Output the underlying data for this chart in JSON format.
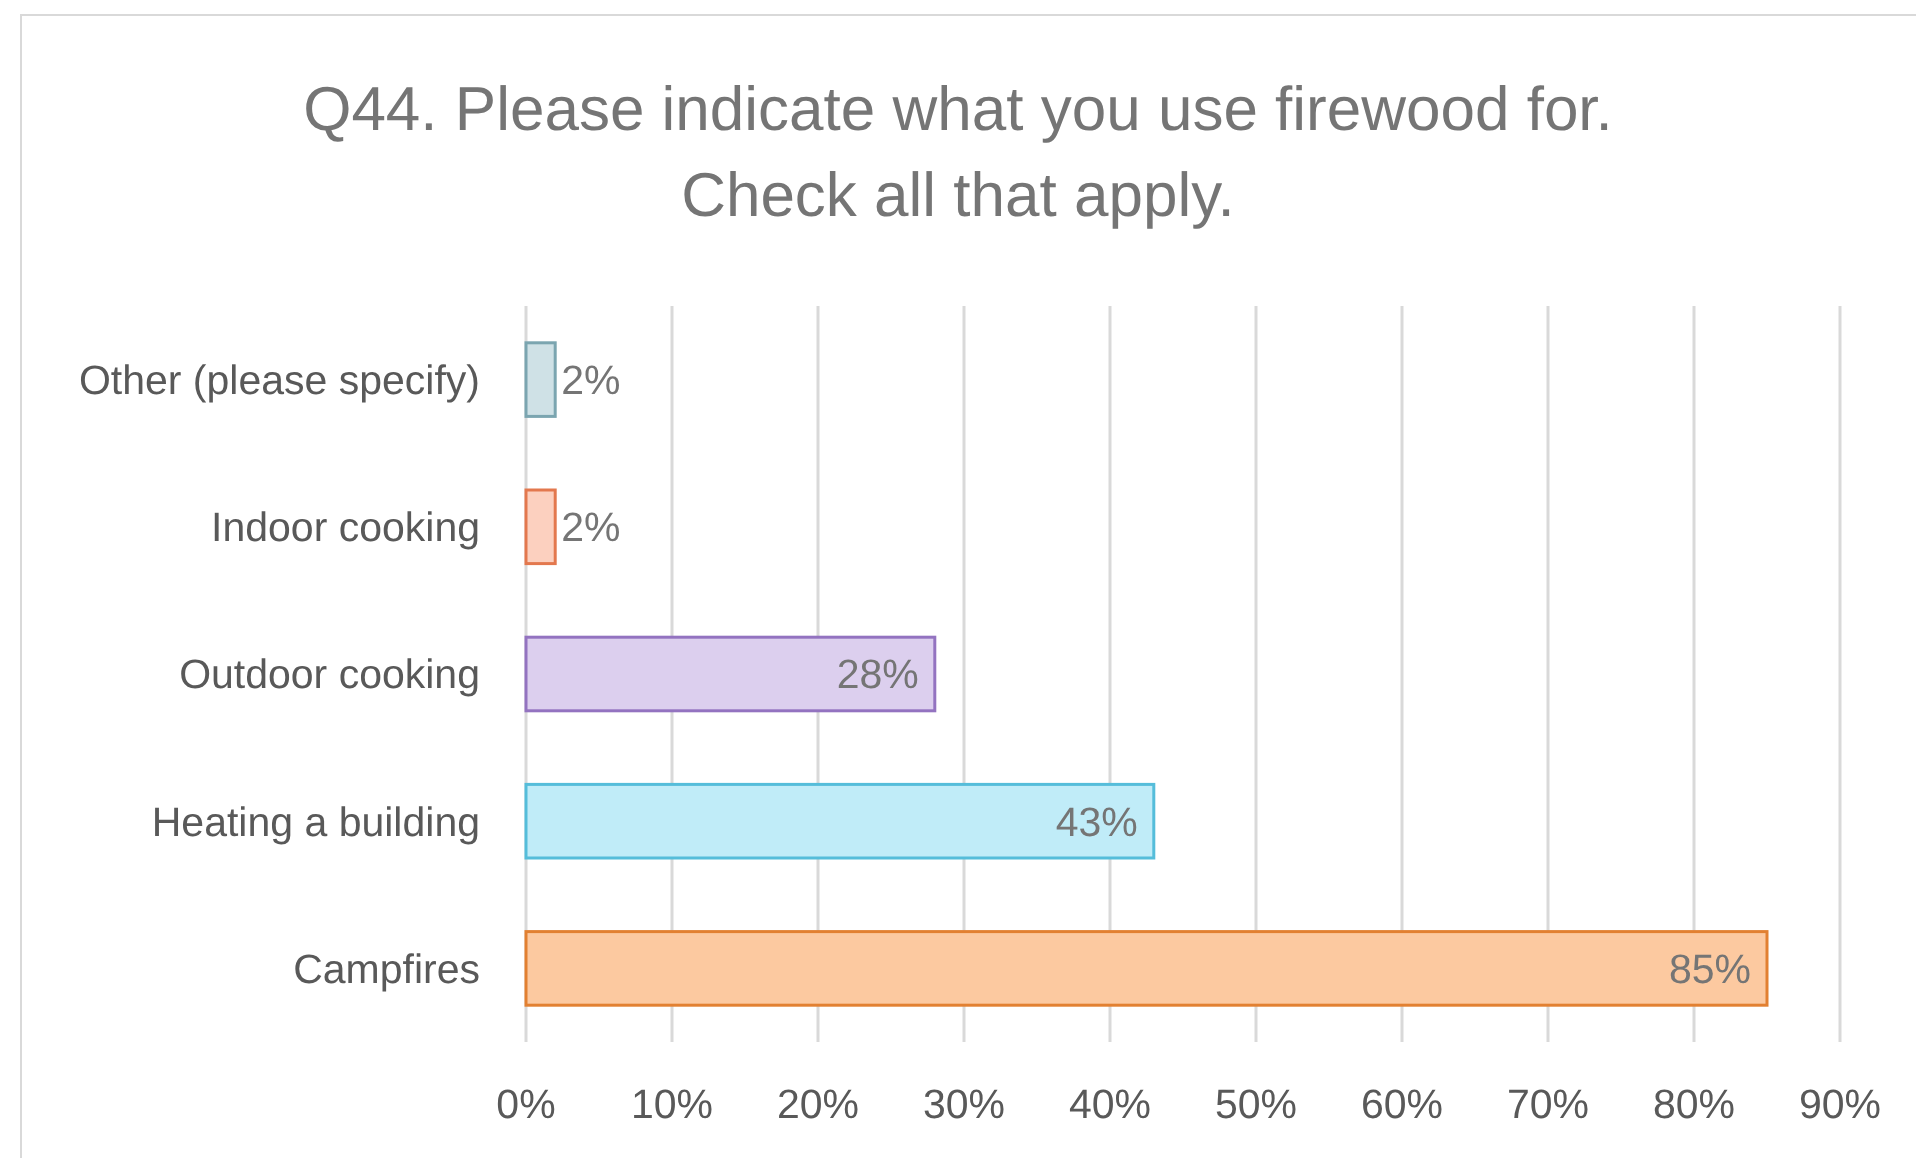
{
  "chart_data": {
    "type": "bar",
    "orientation": "horizontal",
    "title": "Q44. Please indicate what you use firewood for. Check all that apply.",
    "categories": [
      "Other (please specify)",
      "Indoor cooking",
      "Outdoor cooking",
      "Heating a building",
      "Campfires"
    ],
    "values": [
      2,
      2,
      28,
      43,
      85
    ],
    "colors": [
      "#cfe1e6",
      "#fcd0bf",
      "#dccfee",
      "#c0ecf8",
      "#fcc9a0"
    ],
    "value_labels": [
      "2%",
      "2%",
      "28%",
      "43%",
      "85%"
    ],
    "xlim": [
      0,
      90
    ],
    "xticks": [
      {
        "value": 0,
        "label": "0%"
      },
      {
        "value": 10,
        "label": "10%"
      },
      {
        "value": 20,
        "label": "20%"
      },
      {
        "value": 30,
        "label": "30%"
      },
      {
        "value": 40,
        "label": "40%"
      },
      {
        "value": 50,
        "label": "50%"
      },
      {
        "value": 60,
        "label": "60%"
      },
      {
        "value": 70,
        "label": "70%"
      },
      {
        "value": 80,
        "label": "80%"
      },
      {
        "value": 90,
        "label": "90%"
      }
    ],
    "grid": "x"
  }
}
